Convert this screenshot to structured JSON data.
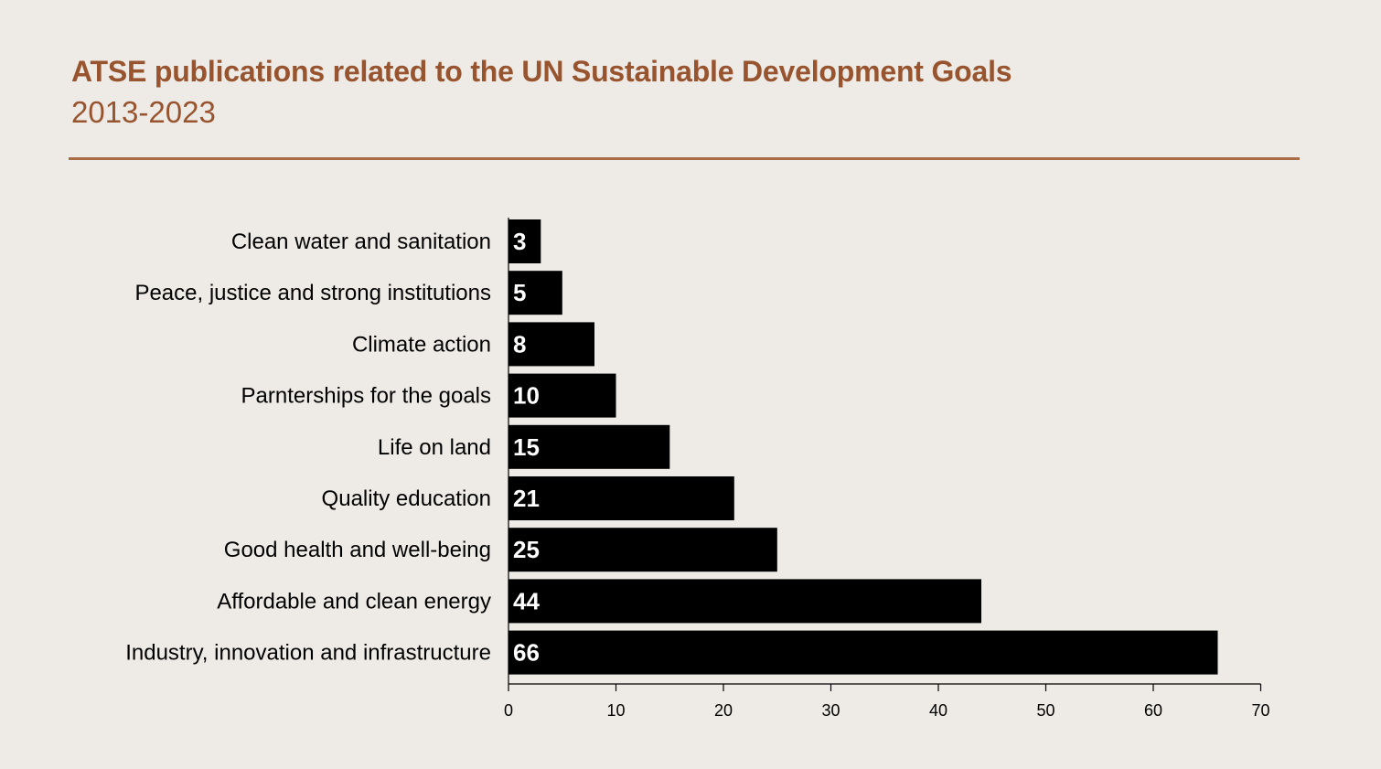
{
  "colors": {
    "background": "#EEEBE6",
    "title": "#97542F",
    "rule": "#A86C47",
    "bar": "#000000",
    "bar_label": "#FFFFFF",
    "text": "#000000"
  },
  "chart_data": {
    "type": "bar",
    "orientation": "horizontal",
    "title": "ATSE publications related to the UN Sustainable Development Goals",
    "subtitle": "2013-2023",
    "categories": [
      "Clean water and sanitation",
      "Peace, justice and strong institutions",
      "Climate action",
      "Parnterships for the goals",
      "Life on land",
      "Quality education",
      "Good health and well-being",
      "Affordable and clean energy",
      "Industry, innovation and infrastructure"
    ],
    "values": [
      3,
      5,
      8,
      10,
      15,
      21,
      25,
      44,
      66
    ],
    "xlim": [
      0,
      70
    ],
    "xticks": [
      0,
      10,
      20,
      30,
      40,
      50,
      60,
      70
    ],
    "xlabel": "",
    "ylabel": "",
    "data_labels": "inside-left",
    "grid": false,
    "legend": "none"
  }
}
